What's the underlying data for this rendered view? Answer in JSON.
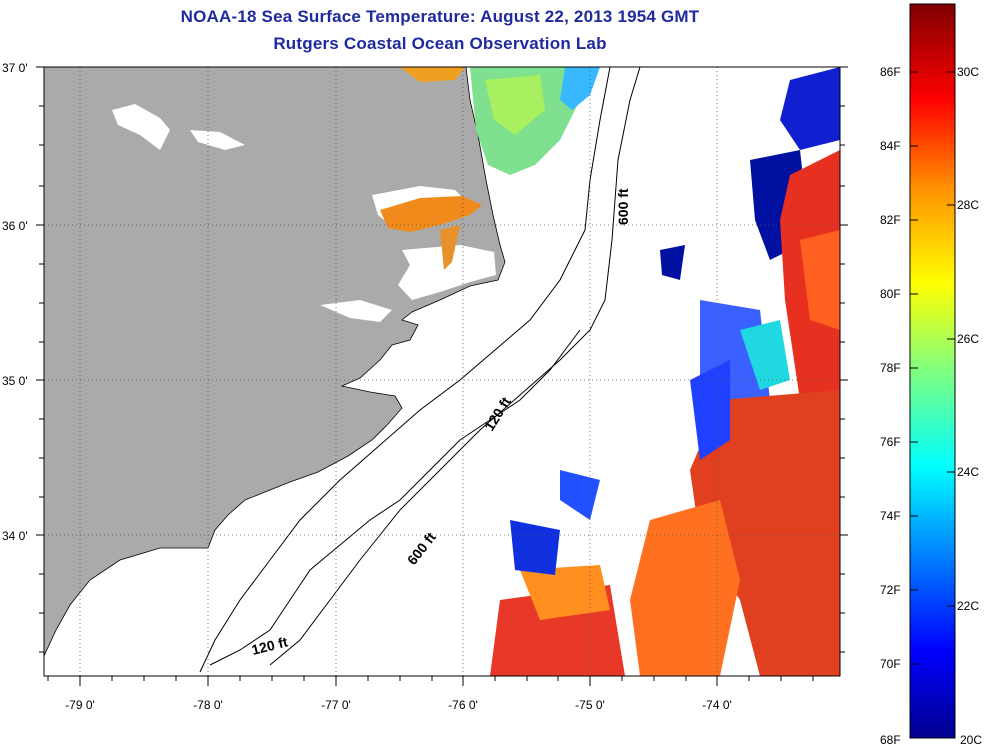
{
  "header": {
    "title": "NOAA-18 Sea Surface Temperature:  August 22, 2013 1954 GMT",
    "subtitle": "Rutgers Coastal Ocean Observation Lab"
  },
  "map": {
    "longitude_labels": [
      "-79 0'",
      "-78 0'",
      "-77 0'",
      "-76 0'",
      "-75 0'",
      "-74 0'"
    ],
    "latitude_labels": [
      "37 0'",
      "36 0'",
      "35 0'",
      "34 0'"
    ],
    "contour_labels": [
      "600 ft",
      "120 ft",
      "600 ft",
      "120 ft"
    ],
    "colors": {
      "land": "#aaaaaa",
      "ocean": "#ffffff",
      "title": "#1f2a9e"
    }
  },
  "colorbar": {
    "fahrenheit_labels": [
      "86F",
      "84F",
      "82F",
      "80F",
      "78F",
      "76F",
      "74F",
      "72F",
      "70F",
      "68F"
    ],
    "celsius_labels": [
      "30C",
      "28C",
      "26C",
      "24C",
      "22C",
      "20C"
    ],
    "colormap": [
      "#00008f",
      "#0000ff",
      "#00a0ff",
      "#00ffff",
      "#7fff7f",
      "#ffff00",
      "#ff9000",
      "#ff0000",
      "#800000"
    ]
  }
}
